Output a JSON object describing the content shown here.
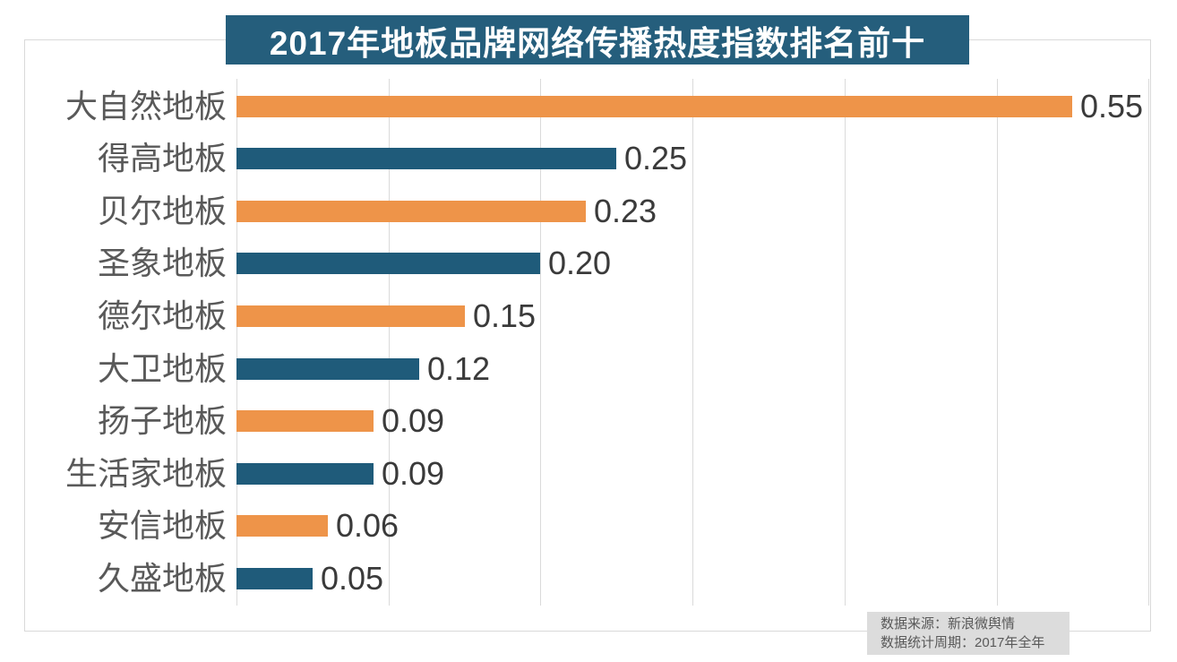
{
  "chart_data": {
    "type": "bar",
    "orientation": "horizontal",
    "title": "2017年地板品牌网络传播热度指数排名前十",
    "categories": [
      "大自然地板",
      "得高地板",
      "贝尔地板",
      "圣象地板",
      "德尔地板",
      "大卫地板",
      "扬子地板",
      "生活家地板",
      "安信地板",
      "久盛地板"
    ],
    "values": [
      0.55,
      0.25,
      0.23,
      0.2,
      0.15,
      0.12,
      0.09,
      0.09,
      0.06,
      0.05
    ],
    "value_labels": [
      "0.55",
      "0.25",
      "0.23",
      "0.20",
      "0.15",
      "0.12",
      "0.09",
      "0.09",
      "0.06",
      "0.05"
    ],
    "xlim": [
      0,
      0.6
    ],
    "grid_interval": 0.1,
    "grid": true,
    "legend": "none",
    "xlabel": "",
    "ylabel": "",
    "bar_color_pattern": "alternating orange/blue starting with orange"
  },
  "colors": {
    "title_bg": "#255e7c",
    "title_text": "#ffffff",
    "orange_bar": "#ee9449",
    "blue_bar": "#1f5b7a",
    "gridline": "#dadada",
    "plot_border": "#d9d9d9",
    "category_label": "#595959",
    "value_label": "#3a3a3a",
    "source_bg": "#dcdcdc",
    "source_text": "#595959",
    "background": "#ffffff"
  },
  "source": {
    "line1": "数据来源：新浪微舆情",
    "line2": "数据统计周期：2017年全年"
  }
}
